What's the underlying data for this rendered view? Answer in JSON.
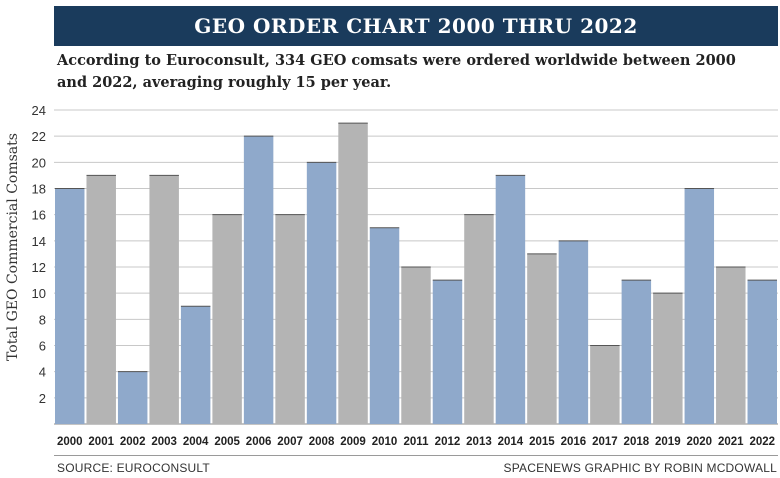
{
  "header": {
    "title": "GEO ORDER CHART 2000 THRU 2022",
    "subtitle": "According to Euroconsult, 334 GEO comsats were ordered worldwide between 2000 and 2022, averaging roughly 15 per year."
  },
  "footer": {
    "source": "SOURCE: EUROCONSULT",
    "credit": "SPACENEWS GRAPHIC BY ROBIN MCDOWALL"
  },
  "colors": {
    "title_bg": "#1a3b5c",
    "bar_blue": "#8fa9cb",
    "bar_gray": "#b4b4b4",
    "grid": "#c8c8c8"
  },
  "chart_data": {
    "type": "bar",
    "ylabel": "Total GEO Commercial Comsats",
    "xlabel": "",
    "ylim": [
      0,
      24
    ],
    "yticks": [
      2,
      4,
      6,
      8,
      10,
      12,
      14,
      16,
      18,
      20,
      22,
      24
    ],
    "grid": true,
    "bar_colors": "alternating blue/gray",
    "categories": [
      "2000",
      "2001",
      "2002",
      "2003",
      "2004",
      "2005",
      "2006",
      "2007",
      "2008",
      "2009",
      "2010",
      "2011",
      "2012",
      "2013",
      "2014",
      "2015",
      "2016",
      "2017",
      "2018",
      "2019",
      "2020",
      "2021",
      "2022"
    ],
    "values": [
      18,
      19,
      4,
      19,
      9,
      16,
      22,
      16,
      20,
      23,
      15,
      12,
      11,
      16,
      19,
      13,
      14,
      6,
      11,
      10,
      18,
      12,
      11
    ]
  }
}
